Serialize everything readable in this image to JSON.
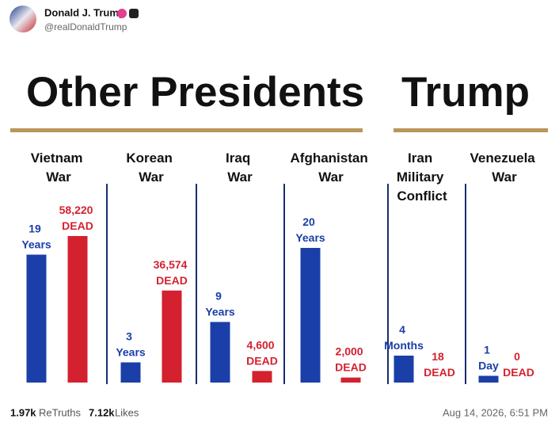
{
  "post": {
    "author": "Donald J. Trump",
    "handle": "@realDonaldTrump",
    "retruths": "1.97k",
    "retruths_label": "ReTruths",
    "likes": "7.12k",
    "likes_label": "Likes",
    "timestamp": "Aug 14, 2026, 6:51 PM"
  },
  "chart_data": {
    "type": "bar",
    "headers": [
      "Other Presidents",
      "Trump"
    ],
    "categories": [
      "Vietnam War",
      "Korean War",
      "Iraq War",
      "Afghanistan War",
      "Iran Military Conflict",
      "Venezuela War"
    ],
    "series": [
      {
        "color": "#1a3fa8",
        "values": [
          19,
          3,
          9,
          20,
          4,
          1
        ],
        "value_labels": [
          "19 Years",
          "3 Years",
          "9 Years",
          "20 Years",
          "4 Months",
          "1 Day"
        ]
      },
      {
        "color": "#d4212f",
        "values": [
          58220,
          36574,
          4600,
          2000,
          18,
          0
        ],
        "value_labels": [
          "58,220 DEAD",
          "36,574 DEAD",
          "4,600 DEAD",
          "2,000 DEAD",
          "18 DEAD",
          "0 DEAD"
        ]
      }
    ]
  }
}
